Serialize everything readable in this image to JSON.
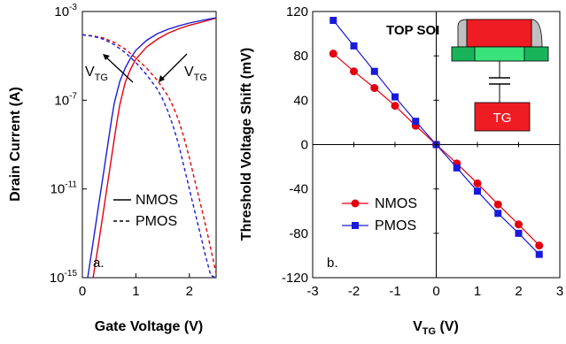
{
  "colors": {
    "nmos": "#e3000f",
    "pmos": "#1a1adb",
    "inset_gate": "#f01c24",
    "inset_channel": "#19b35a",
    "inset_channel_center": "#37e37a",
    "inset_spacer": "#c0c0c0",
    "inset_tg": "#f01c24"
  },
  "chart_data": [
    {
      "type": "line",
      "panel_label": "a.",
      "title": "",
      "xlabel": "Gate Voltage (V)",
      "ylabel": "Drain Current (A)",
      "xlim": [
        0,
        2.5
      ],
      "ylim_log10": [
        -15,
        -3
      ],
      "y_scale": "log",
      "x_ticks": [
        "0",
        "1",
        "2"
      ],
      "y_ticks": [
        {
          "base": "10",
          "exp": "-3"
        },
        {
          "base": "10",
          "exp": "-7"
        },
        {
          "base": "10",
          "exp": "-11"
        },
        {
          "base": "10",
          "exp": "-15"
        }
      ],
      "grid": false,
      "legend": {
        "position": "middle-right",
        "entries": [
          {
            "label": "NMOS",
            "style": "solid"
          },
          {
            "label": "PMOS",
            "style": "dashed"
          }
        ]
      },
      "annotations": [
        {
          "base": "V",
          "sub": "TG",
          "near": "left"
        },
        {
          "base": "V",
          "sub": "TG",
          "near": "right"
        }
      ],
      "series": [
        {
          "device": "NMOS",
          "color_key": "nmos",
          "style": "solid",
          "x": [
            0.2,
            0.3,
            0.4,
            0.5,
            0.55,
            0.6,
            0.65,
            0.7,
            0.8,
            0.9,
            1.0,
            1.2,
            1.4,
            1.6,
            1.8,
            2.0,
            2.2,
            2.5
          ],
          "log10_y": [
            -15.0,
            -13.5,
            -11.9,
            -10.3,
            -9.5,
            -8.7,
            -7.9,
            -7.2,
            -6.2,
            -5.6,
            -5.15,
            -4.6,
            -4.25,
            -3.98,
            -3.78,
            -3.62,
            -3.5,
            -3.3
          ]
        },
        {
          "device": "NMOS",
          "color_key": "pmos",
          "style": "solid",
          "x": [
            0.1,
            0.2,
            0.3,
            0.4,
            0.45,
            0.5,
            0.55,
            0.6,
            0.7,
            0.8,
            0.9,
            1.0,
            1.2,
            1.4,
            1.6,
            1.8,
            2.0,
            2.2,
            2.5
          ],
          "log10_y": [
            -15.0,
            -13.4,
            -11.8,
            -10.2,
            -9.4,
            -8.6,
            -7.8,
            -7.1,
            -6.15,
            -5.55,
            -5.1,
            -4.75,
            -4.3,
            -4.0,
            -3.8,
            -3.65,
            -3.52,
            -3.42,
            -3.28
          ]
        },
        {
          "device": "PMOS",
          "color_key": "nmos",
          "style": "dashed",
          "x": [
            0.0,
            0.2,
            0.4,
            0.6,
            0.8,
            1.0,
            1.2,
            1.4,
            1.6,
            1.7,
            1.8,
            1.9,
            2.0,
            2.1,
            2.2,
            2.3,
            2.4,
            2.5
          ],
          "log10_y": [
            -4.05,
            -4.1,
            -4.2,
            -4.4,
            -4.7,
            -5.1,
            -5.55,
            -6.1,
            -6.8,
            -7.3,
            -7.9,
            -8.7,
            -9.6,
            -10.6,
            -11.6,
            -12.6,
            -13.7,
            -14.8
          ]
        },
        {
          "device": "PMOS",
          "color_key": "pmos",
          "style": "dashed",
          "x": [
            0.0,
            0.2,
            0.4,
            0.6,
            0.8,
            1.0,
            1.2,
            1.4,
            1.5,
            1.6,
            1.7,
            1.8,
            1.9,
            2.0,
            2.1,
            2.2,
            2.3,
            2.4,
            2.5
          ],
          "log10_y": [
            -4.05,
            -4.12,
            -4.25,
            -4.5,
            -4.85,
            -5.3,
            -5.85,
            -6.5,
            -6.95,
            -7.5,
            -8.2,
            -9.0,
            -10.0,
            -11.0,
            -12.0,
            -13.0,
            -14.0,
            -14.9,
            -15.0
          ]
        }
      ]
    },
    {
      "type": "line",
      "panel_label": "b.",
      "title": "",
      "xlabel_base": "V",
      "xlabel_sub": "TG",
      "xlabel_unit": " (V)",
      "ylabel": "Threshold Voltage Shift (mV)",
      "xlim": [
        -3,
        3
      ],
      "ylim": [
        -120,
        120
      ],
      "x_ticks": [
        "-3",
        "-2",
        "-1",
        "0",
        "1",
        "2",
        "3"
      ],
      "y_ticks": [
        "-120",
        "-80",
        "-40",
        "0",
        "40",
        "80",
        "120"
      ],
      "grid": false,
      "legend": {
        "position": "lower-left",
        "entries": [
          {
            "label": "NMOS",
            "color_key": "nmos",
            "marker": "circle"
          },
          {
            "label": "PMOS",
            "color_key": "pmos",
            "marker": "square"
          }
        ]
      },
      "x": [
        -2.5,
        -2.0,
        -1.5,
        -1.0,
        -0.5,
        0.0,
        0.5,
        1.0,
        1.5,
        2.0,
        2.5
      ],
      "series": [
        {
          "name": "NMOS",
          "color_key": "nmos",
          "marker": "circle",
          "values": [
            82,
            66,
            51,
            35,
            17,
            0,
            -17,
            -35,
            -54,
            -72,
            -91
          ]
        },
        {
          "name": "PMOS",
          "color_key": "pmos",
          "marker": "square",
          "values": [
            112,
            89,
            66,
            43,
            21,
            0,
            -21,
            -42,
            -62,
            -80,
            -99
          ]
        }
      ],
      "inset": {
        "title": "TOP SOI",
        "gate_label": "TG"
      }
    }
  ]
}
